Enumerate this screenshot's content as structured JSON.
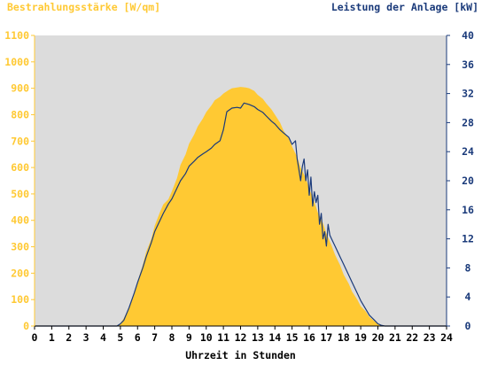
{
  "colors": {
    "irradiance": "#FFC933",
    "power": "#1A3A7A",
    "plot_background": "#DCDCDC",
    "left_axis_text": "#FFC933",
    "right_axis_text": "#1A3A7A"
  },
  "chart_data": {
    "type": "area",
    "left_axis_title": "Bestrahlungsstärke [W/qm]",
    "right_axis_title": "Leistung der Anlage [kW]",
    "xlabel": "Uhrzeit in Stunden",
    "xlim": [
      0,
      24
    ],
    "ylim_left": [
      0,
      1100
    ],
    "ylim_right": [
      0,
      40
    ],
    "x_ticks": [
      0,
      1,
      2,
      3,
      4,
      5,
      6,
      7,
      8,
      9,
      10,
      11,
      12,
      13,
      14,
      15,
      16,
      17,
      18,
      19,
      20,
      21,
      22,
      23,
      24
    ],
    "y_ticks_left": [
      0,
      100,
      200,
      300,
      400,
      500,
      600,
      700,
      800,
      900,
      1000,
      1100
    ],
    "y_ticks_right": [
      0,
      4,
      8,
      12,
      16,
      20,
      24,
      28,
      32,
      36,
      40
    ],
    "grid": false,
    "series": [
      {
        "axis": "left",
        "kind": "area",
        "x": [
          0,
          4.8,
          5.0,
          5.2,
          5.5,
          5.8,
          6.0,
          6.3,
          6.5,
          6.8,
          7.0,
          7.3,
          7.5,
          7.8,
          8.0,
          8.3,
          8.5,
          8.8,
          9.0,
          9.3,
          9.5,
          9.8,
          10.0,
          10.3,
          10.5,
          10.8,
          11.0,
          11.3,
          11.5,
          11.8,
          12.0,
          12.3,
          12.5,
          12.8,
          13.0,
          13.3,
          13.5,
          13.8,
          14.0,
          14.3,
          14.5,
          14.8,
          15.0,
          15.3,
          15.5,
          15.8,
          16.0,
          16.3,
          16.5,
          16.8,
          17.0,
          17.3,
          17.5,
          17.8,
          18.0,
          18.3,
          18.5,
          18.8,
          19.0,
          19.3,
          19.5,
          19.8,
          20.0,
          20.2,
          20.4,
          24
        ],
        "values": [
          0,
          0,
          10,
          30,
          70,
          120,
          170,
          230,
          280,
          330,
          380,
          430,
          460,
          480,
          510,
          560,
          610,
          650,
          690,
          725,
          755,
          785,
          810,
          835,
          855,
          868,
          880,
          893,
          900,
          903,
          905,
          903,
          900,
          890,
          875,
          860,
          842,
          820,
          800,
          770,
          740,
          710,
          680,
          640,
          600,
          560,
          520,
          470,
          430,
          390,
          350,
          305,
          270,
          230,
          195,
          160,
          130,
          100,
          75,
          55,
          35,
          18,
          8,
          3,
          0,
          0
        ]
      },
      {
        "axis": "right",
        "kind": "line",
        "x": [
          0,
          4.8,
          5.0,
          5.2,
          5.5,
          5.8,
          6.0,
          6.3,
          6.5,
          6.8,
          7.0,
          7.3,
          7.5,
          7.8,
          8.0,
          8.3,
          8.5,
          8.8,
          9.0,
          9.3,
          9.5,
          9.8,
          10.0,
          10.3,
          10.5,
          10.8,
          11.0,
          11.2,
          11.5,
          11.8,
          12.0,
          12.2,
          12.5,
          12.8,
          13.0,
          13.3,
          13.5,
          13.8,
          14.0,
          14.3,
          14.5,
          14.8,
          15.0,
          15.2,
          15.3,
          15.4,
          15.5,
          15.6,
          15.7,
          15.8,
          15.9,
          16.0,
          16.1,
          16.2,
          16.3,
          16.4,
          16.5,
          16.6,
          16.7,
          16.8,
          16.9,
          17.0,
          17.1,
          17.2,
          17.3,
          17.5,
          17.8,
          18.0,
          18.3,
          18.5,
          18.8,
          19.0,
          19.3,
          19.5,
          19.8,
          20.0,
          20.2,
          20.4,
          24
        ],
        "values": [
          0,
          0,
          0.3,
          0.8,
          2.5,
          4.5,
          6.0,
          8.0,
          9.5,
          11.5,
          13.0,
          14.5,
          15.5,
          16.8,
          17.5,
          19.0,
          20.0,
          21.0,
          22.0,
          22.7,
          23.2,
          23.7,
          24.0,
          24.5,
          25.0,
          25.5,
          27.0,
          29.5,
          30.0,
          30.1,
          30.0,
          30.7,
          30.5,
          30.2,
          29.8,
          29.4,
          28.9,
          28.2,
          27.8,
          27.0,
          26.6,
          26.0,
          25.0,
          25.5,
          23.0,
          21.5,
          20.0,
          22.0,
          23.0,
          20.0,
          21.5,
          18.0,
          20.5,
          16.5,
          18.5,
          17.0,
          18.0,
          14.0,
          15.5,
          12.0,
          13.0,
          11.0,
          14.0,
          12.5,
          12.0,
          11.0,
          9.5,
          8.5,
          7.0,
          6.0,
          4.5,
          3.5,
          2.3,
          1.5,
          0.8,
          0.3,
          0.1,
          0,
          0
        ]
      }
    ]
  }
}
